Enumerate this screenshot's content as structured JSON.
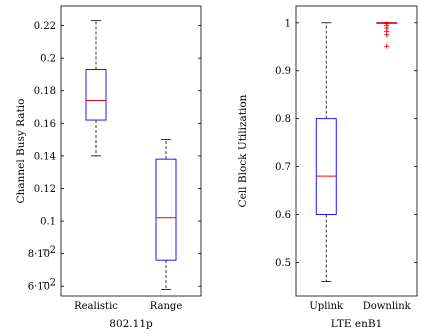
{
  "chart_data": [
    {
      "type": "box",
      "xlabel": "802.11p",
      "ylabel": "Channel Busy Ratio",
      "ylim": [
        0.054,
        0.232
      ],
      "yticks": [
        {
          "value": 0.06,
          "label": "6·10",
          "exp": "−2"
        },
        {
          "value": 0.08,
          "label": "8·10",
          "exp": "−2"
        },
        {
          "value": 0.1,
          "label": "0.1"
        },
        {
          "value": 0.12,
          "label": "0.12"
        },
        {
          "value": 0.14,
          "label": "0.14"
        },
        {
          "value": 0.16,
          "label": "0.16"
        },
        {
          "value": 0.18,
          "label": "0.18"
        },
        {
          "value": 0.2,
          "label": "0.2"
        },
        {
          "value": 0.22,
          "label": "0.22"
        }
      ],
      "boxes": [
        {
          "category": "Realistic",
          "whisker_low": 0.14,
          "q1": 0.162,
          "median": 0.174,
          "q3": 0.193,
          "whisker_high": 0.223,
          "outliers": []
        },
        {
          "category": "Range",
          "whisker_low": 0.058,
          "q1": 0.076,
          "median": 0.102,
          "q3": 0.138,
          "whisker_high": 0.15,
          "outliers": []
        }
      ]
    },
    {
      "type": "box",
      "xlabel": "LTE enB1",
      "ylabel": "Cell Block Utilization",
      "ylim": [
        0.43,
        1.035
      ],
      "yticks": [
        {
          "value": 0.5,
          "label": "0.5"
        },
        {
          "value": 0.6,
          "label": "0.6"
        },
        {
          "value": 0.7,
          "label": "0.7"
        },
        {
          "value": 0.8,
          "label": "0.8"
        },
        {
          "value": 0.9,
          "label": "0.9"
        },
        {
          "value": 1.0,
          "label": "1"
        }
      ],
      "boxes": [
        {
          "category": "Uplink",
          "whisker_low": 0.46,
          "q1": 0.6,
          "median": 0.68,
          "q3": 0.8,
          "whisker_high": 1.0,
          "outliers": []
        },
        {
          "category": "Downlink",
          "whisker_low": 1.0,
          "q1": 1.0,
          "median": 1.0,
          "q3": 1.0,
          "whisker_high": 1.0,
          "outliers": [
            0.998,
            0.994,
            0.989,
            0.982,
            0.975,
            0.951
          ]
        }
      ]
    }
  ],
  "colors": {
    "box": "#0000ff",
    "median": "#ff0000",
    "whisker": "#000000",
    "outlier": "#ff0000",
    "axis": "#000000"
  }
}
